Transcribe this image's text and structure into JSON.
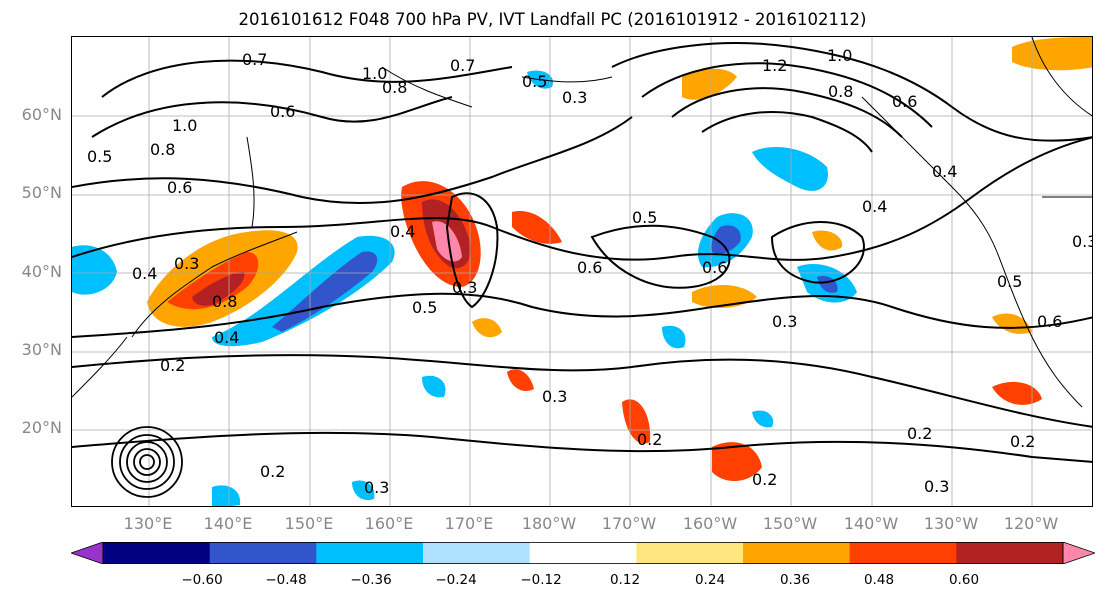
{
  "title": "2016101612 F048 700 hPa PV, IVT Landfall PC (2016101912 - 2016102112)",
  "lat_labels": [
    "60°N",
    "50°N",
    "40°N",
    "30°N",
    "20°N"
  ],
  "lon_labels": [
    "130°E",
    "140°E",
    "150°E",
    "160°E",
    "170°E",
    "180°W",
    "170°W",
    "160°W",
    "150°W",
    "140°W",
    "130°W",
    "120°W"
  ],
  "colorbar": {
    "tick_labels": [
      "−0.60",
      "−0.48",
      "−0.36",
      "−0.24",
      "−0.12",
      "0.12",
      "0.24",
      "0.36",
      "0.48",
      "0.60"
    ],
    "colors": [
      "#9933cc",
      "#000080",
      "#3355cc",
      "#00bfff",
      "#b0e0ff",
      "#ffffff",
      "#ffe680",
      "#ffa500",
      "#ff4000",
      "#b22222",
      "#ff88aa"
    ]
  },
  "contour_labels": [
    "0.7",
    "1.0",
    "0.8",
    "0.7",
    "0.5",
    "0.3",
    "1.2",
    "1.0",
    "0.8",
    "0.6",
    "0.6",
    "0.8",
    "1.0",
    "0.5",
    "0.6",
    "0.4",
    "0.4",
    "0.3",
    "0.8",
    "0.4",
    "0.2",
    "0.5",
    "0.3",
    "0.6",
    "0.5",
    "0.6",
    "0.3",
    "0.3",
    "0.2",
    "0.2",
    "0.2",
    "0.3",
    "0.2",
    "0.5",
    "0.6",
    "0.3",
    "0.4",
    "0.4",
    "0.2",
    "0.3"
  ]
}
